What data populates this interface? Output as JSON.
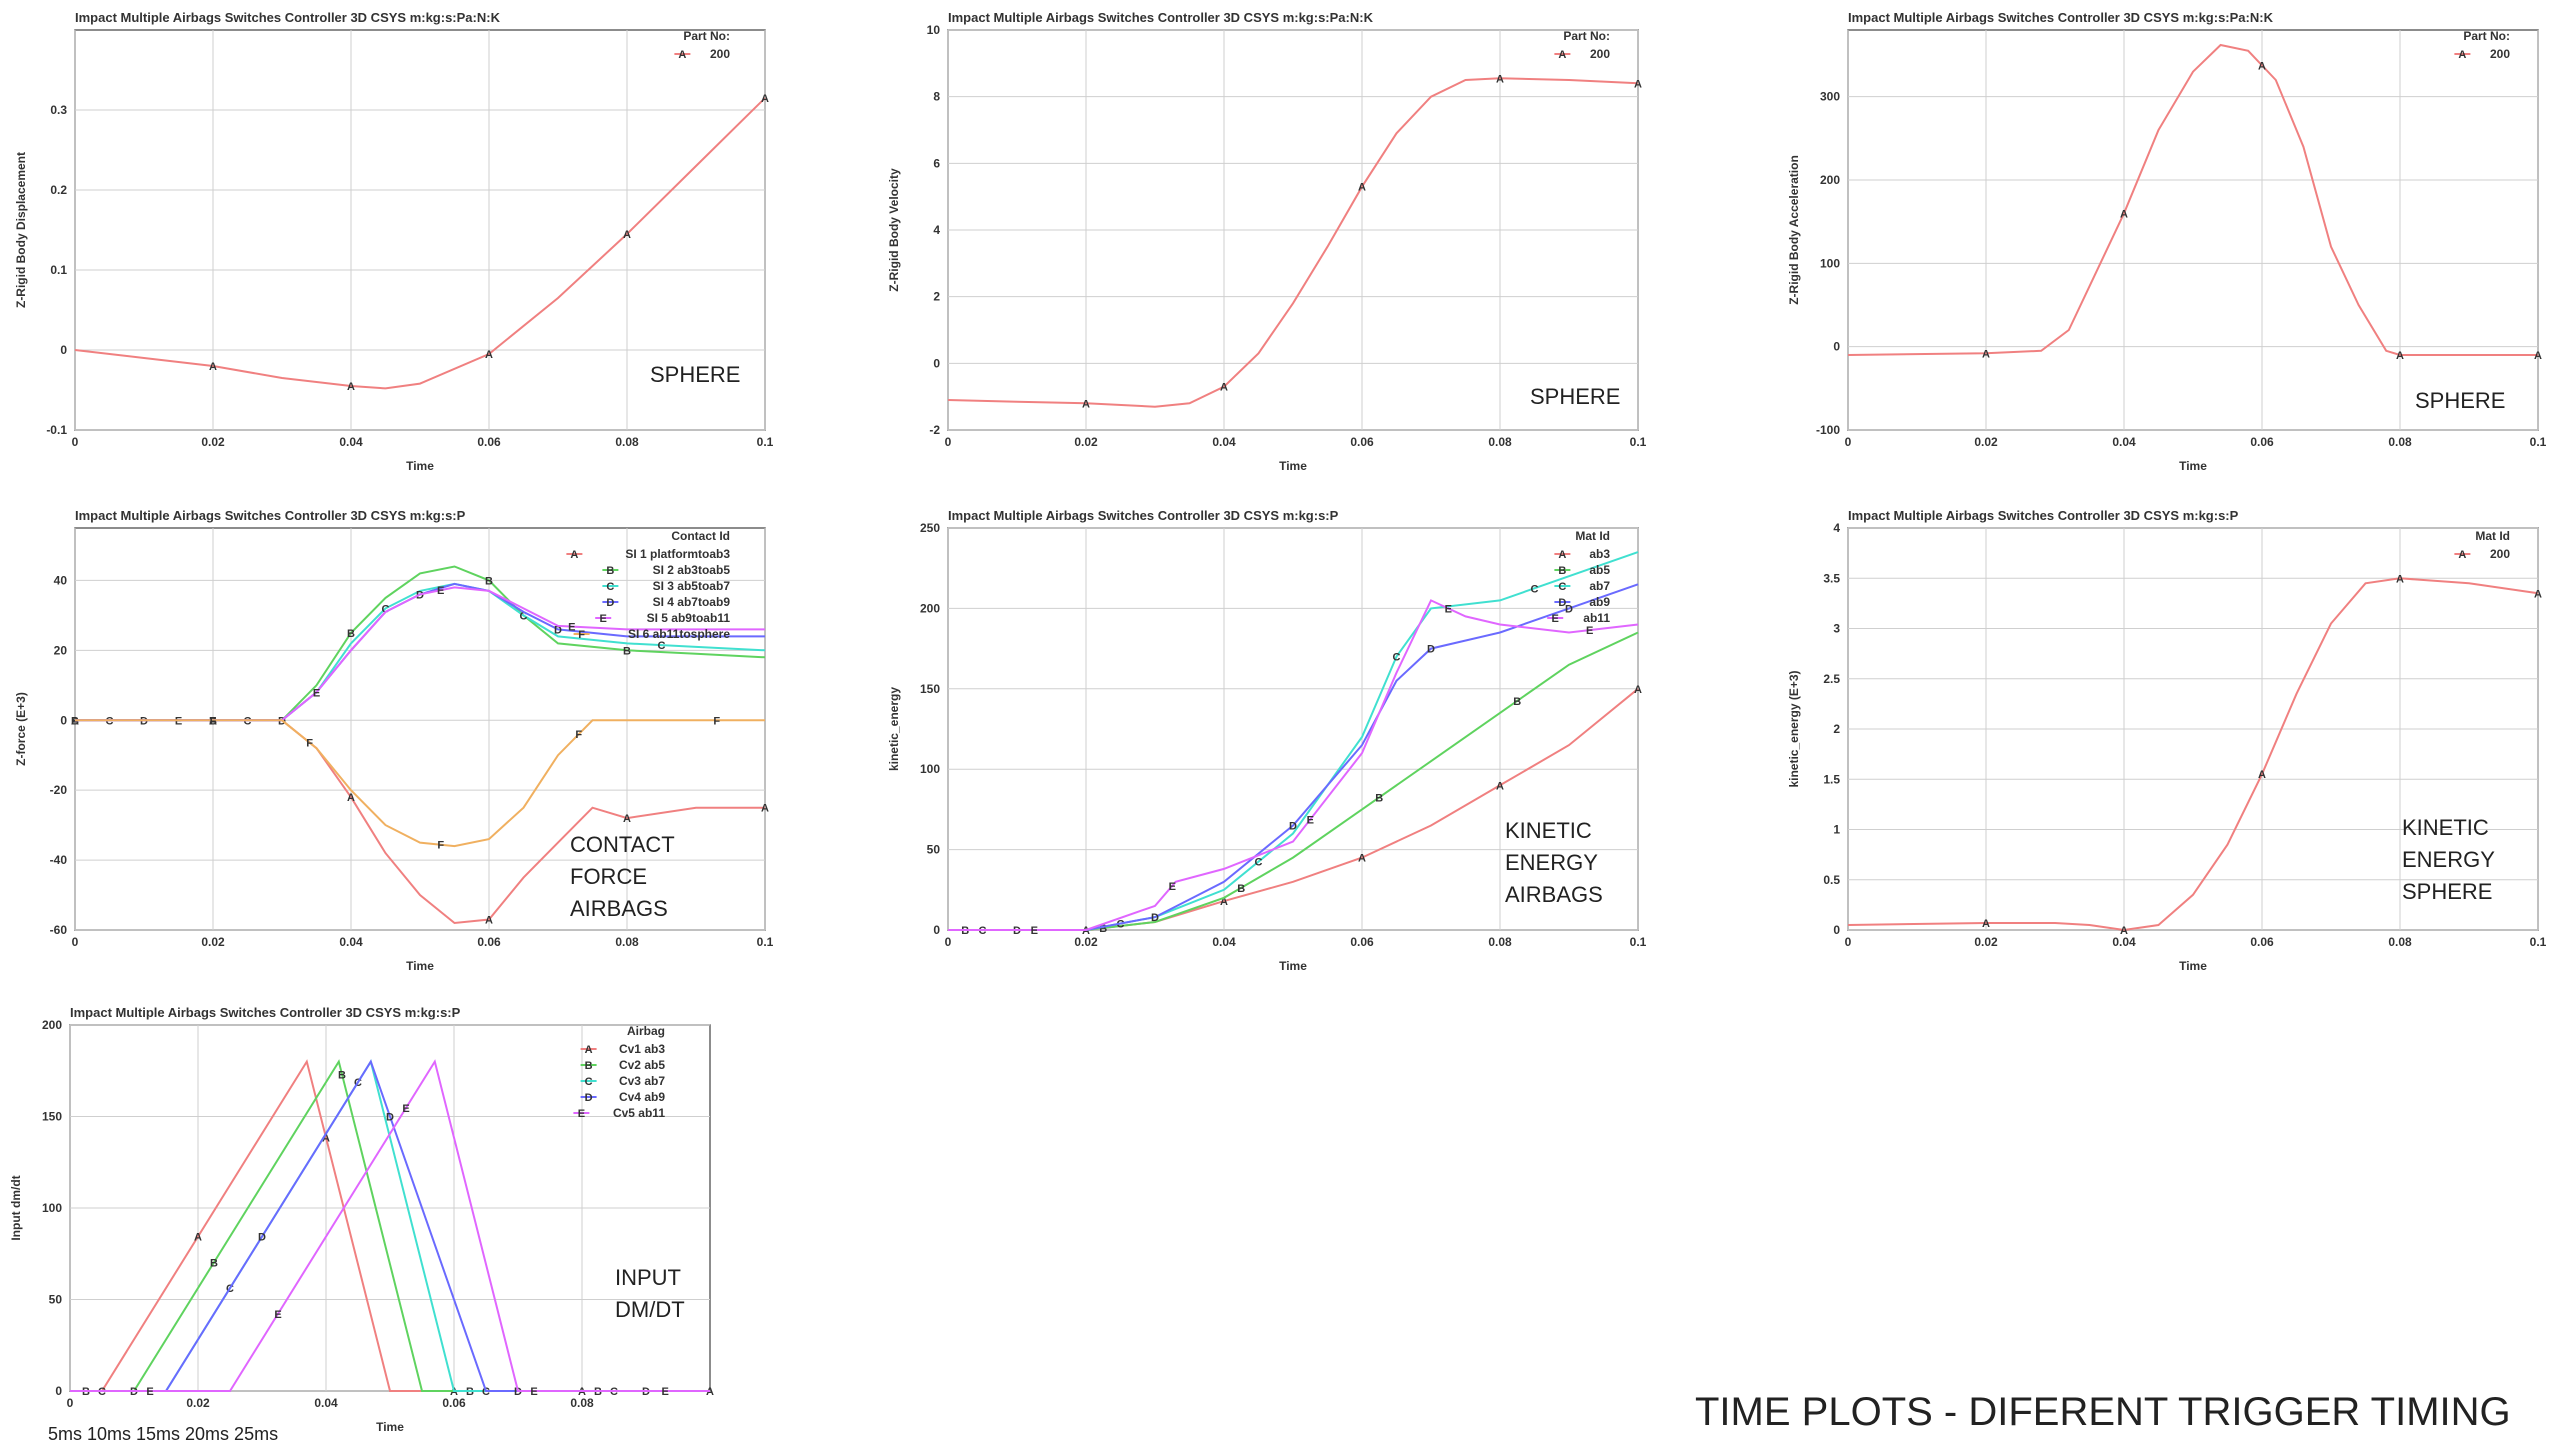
{
  "caption": "TIME PLOTS - DIFERENT TRIGGER TIMING",
  "bottom_note": "5ms 10ms 15ms 20ms 25ms",
  "chart_data": [
    {
      "id": "disp",
      "type": "line",
      "title": "Impact Multiple Airbags Switches Controller 3D CSYS m:kg:s:Pa:N:K",
      "xlabel": "Time",
      "ylabel": "Z-Rigid Body Displacement",
      "xlim": [
        0,
        0.1
      ],
      "ylim": [
        -0.1,
        0.4
      ],
      "xticks": [
        0,
        0.02,
        0.04,
        0.06,
        0.08,
        0.1
      ],
      "yticks": [
        -0.1,
        0,
        0.1,
        0.2,
        0.3
      ],
      "legend_title": "Part No:",
      "annotation": [
        "SPHERE"
      ],
      "series": [
        {
          "name": "200",
          "marker": "A",
          "color": "#f08080",
          "x": [
            0,
            0.01,
            0.02,
            0.03,
            0.04,
            0.045,
            0.05,
            0.06,
            0.07,
            0.08,
            0.09,
            0.1
          ],
          "y": [
            0,
            -0.01,
            -0.02,
            -0.035,
            -0.045,
            -0.048,
            -0.042,
            -0.005,
            0.065,
            0.145,
            0.23,
            0.315
          ],
          "marks_x": [
            0.02,
            0.04,
            0.06,
            0.08,
            0.1
          ]
        }
      ]
    },
    {
      "id": "vel",
      "type": "line",
      "title": "Impact Multiple Airbags Switches Controller 3D CSYS m:kg:s:Pa:N:K",
      "xlabel": "Time",
      "ylabel": "Z-Rigid Body Velocity",
      "xlim": [
        0,
        0.1
      ],
      "ylim": [
        -2,
        10
      ],
      "xticks": [
        0,
        0.02,
        0.04,
        0.06,
        0.08,
        0.1
      ],
      "yticks": [
        -2,
        0,
        2,
        4,
        6,
        8,
        10
      ],
      "legend_title": "Part No:",
      "annotation": [
        "SPHERE"
      ],
      "series": [
        {
          "name": "200",
          "marker": "A",
          "color": "#f08080",
          "x": [
            0,
            0.01,
            0.02,
            0.03,
            0.035,
            0.04,
            0.045,
            0.05,
            0.055,
            0.06,
            0.065,
            0.07,
            0.075,
            0.08,
            0.09,
            0.1
          ],
          "y": [
            -1.1,
            -1.15,
            -1.2,
            -1.3,
            -1.2,
            -0.7,
            0.3,
            1.8,
            3.5,
            5.3,
            6.9,
            8.0,
            8.5,
            8.55,
            8.5,
            8.4
          ],
          "marks_x": [
            0.02,
            0.04,
            0.06,
            0.08,
            0.1
          ]
        }
      ]
    },
    {
      "id": "acc",
      "type": "line",
      "title": "Impact Multiple Airbags Switches Controller 3D CSYS m:kg:s:Pa:N:K",
      "xlabel": "Time",
      "ylabel": "Z-Rigid Body Acceleration",
      "xlim": [
        0,
        0.1
      ],
      "ylim": [
        -100,
        380
      ],
      "xticks": [
        0,
        0.02,
        0.04,
        0.06,
        0.08,
        0.1
      ],
      "yticks": [
        -100,
        0,
        100,
        200,
        300
      ],
      "legend_title": "Part No:",
      "annotation": [
        "SPHERE"
      ],
      "series": [
        {
          "name": "200",
          "marker": "A",
          "color": "#f08080",
          "x": [
            0,
            0.02,
            0.028,
            0.032,
            0.036,
            0.04,
            0.045,
            0.05,
            0.054,
            0.058,
            0.062,
            0.066,
            0.07,
            0.074,
            0.078,
            0.08,
            0.09,
            0.1
          ],
          "y": [
            -10,
            -8,
            -5,
            20,
            90,
            160,
            260,
            330,
            362,
            355,
            320,
            240,
            120,
            50,
            -5,
            -10,
            -10,
            -10
          ],
          "marks_x": [
            0.02,
            0.04,
            0.06,
            0.08,
            0.1
          ]
        }
      ]
    },
    {
      "id": "force",
      "type": "line",
      "title": "Impact Multiple Airbags Switches Controller 3D CSYS m:kg:s:P",
      "xlabel": "Time",
      "ylabel": "Z-force (E+3)",
      "xlim": [
        0,
        0.1
      ],
      "ylim": [
        -60,
        55
      ],
      "xticks": [
        0,
        0.02,
        0.04,
        0.06,
        0.08,
        0.1
      ],
      "yticks": [
        -60,
        -40,
        -20,
        0,
        20,
        40
      ],
      "legend_title": "Contact Id",
      "annotation": [
        "CONTACT",
        "FORCE",
        "AIRBAGS"
      ],
      "series": [
        {
          "name": "SI 1 platformtoab3",
          "marker": "A",
          "color": "#f08080",
          "x": [
            0,
            0.02,
            0.03,
            0.035,
            0.04,
            0.045,
            0.05,
            0.055,
            0.06,
            0.065,
            0.07,
            0.075,
            0.08,
            0.09,
            0.1
          ],
          "y": [
            0,
            0,
            0,
            -8,
            -22,
            -38,
            -50,
            -58,
            -57,
            -45,
            -35,
            -25,
            -28,
            -25,
            -25
          ],
          "marks_x": [
            0,
            0.02,
            0.04,
            0.06,
            0.08,
            0.1
          ]
        },
        {
          "name": "SI 2 ab3toab5",
          "marker": "B",
          "color": "#5fd35f",
          "x": [
            0,
            0.02,
            0.03,
            0.035,
            0.04,
            0.045,
            0.05,
            0.055,
            0.06,
            0.065,
            0.07,
            0.08,
            0.09,
            0.1
          ],
          "y": [
            0,
            0,
            0,
            10,
            25,
            35,
            42,
            44,
            40,
            30,
            22,
            20,
            19,
            18
          ],
          "marks_x": [
            0,
            0.02,
            0.04,
            0.06,
            0.08
          ]
        },
        {
          "name": "SI 3 ab5toab7",
          "marker": "C",
          "color": "#40e0d0",
          "x": [
            0,
            0.02,
            0.03,
            0.035,
            0.04,
            0.045,
            0.05,
            0.055,
            0.06,
            0.065,
            0.07,
            0.08,
            0.09,
            0.1
          ],
          "y": [
            0,
            0,
            0,
            8,
            22,
            32,
            37,
            39,
            37,
            30,
            24,
            22,
            21,
            20
          ],
          "marks_x": [
            0.005,
            0.025,
            0.045,
            0.065,
            0.085
          ]
        },
        {
          "name": "SI 4 ab7toab9",
          "marker": "D",
          "color": "#6a6aff",
          "x": [
            0,
            0.02,
            0.03,
            0.035,
            0.04,
            0.045,
            0.05,
            0.055,
            0.06,
            0.065,
            0.07,
            0.08,
            0.09,
            0.1
          ],
          "y": [
            0,
            0,
            0,
            8,
            20,
            31,
            36,
            39,
            37,
            31,
            26,
            24,
            24,
            24
          ],
          "marks_x": [
            0.01,
            0.03,
            0.05,
            0.07
          ]
        },
        {
          "name": "SI 5 ab9toab11",
          "marker": "E",
          "color": "#e066ff",
          "x": [
            0,
            0.02,
            0.03,
            0.035,
            0.04,
            0.045,
            0.05,
            0.055,
            0.06,
            0.065,
            0.07,
            0.08,
            0.09,
            0.1
          ],
          "y": [
            0,
            0,
            0,
            8,
            20,
            31,
            36,
            38,
            37,
            32,
            27,
            26,
            26,
            26
          ],
          "marks_x": [
            0.015,
            0.035,
            0.053,
            0.072
          ]
        },
        {
          "name": "SI 6 ab11tosphere",
          "marker": "F",
          "color": "#f0b060",
          "x": [
            0,
            0.02,
            0.03,
            0.035,
            0.04,
            0.045,
            0.05,
            0.055,
            0.06,
            0.065,
            0.07,
            0.075,
            0.08,
            0.09,
            0.1
          ],
          "y": [
            0,
            0,
            0,
            -8,
            -20,
            -30,
            -35,
            -36,
            -34,
            -25,
            -10,
            0,
            0,
            0,
            0
          ],
          "marks_x": [
            0.02,
            0.034,
            0.053,
            0.073,
            0.093
          ]
        }
      ]
    },
    {
      "id": "ke_airbags",
      "type": "line",
      "title": "Impact Multiple Airbags Switches Controller 3D CSYS m:kg:s:P",
      "xlabel": "Time",
      "ylabel": "kinetic_energy",
      "xlim": [
        0,
        0.1
      ],
      "ylim": [
        0,
        250
      ],
      "xticks": [
        0,
        0.02,
        0.04,
        0.06,
        0.08,
        0.1
      ],
      "yticks": [
        0,
        50,
        100,
        150,
        200,
        250
      ],
      "legend_title": "Mat Id",
      "annotation": [
        "KINETIC",
        "ENERGY",
        "AIRBAGS"
      ],
      "series": [
        {
          "name": "ab3",
          "marker": "A",
          "color": "#f08080",
          "x": [
            0,
            0.02,
            0.03,
            0.04,
            0.05,
            0.06,
            0.07,
            0.08,
            0.09,
            0.1
          ],
          "y": [
            0,
            0,
            5,
            18,
            30,
            45,
            65,
            90,
            115,
            150
          ],
          "marks_x": [
            0.02,
            0.04,
            0.06,
            0.08,
            0.1
          ]
        },
        {
          "name": "ab5",
          "marker": "B",
          "color": "#5fd35f",
          "x": [
            0,
            0.02,
            0.03,
            0.04,
            0.05,
            0.06,
            0.07,
            0.08,
            0.09,
            0.1
          ],
          "y": [
            0,
            0,
            5,
            20,
            45,
            75,
            105,
            135,
            165,
            185
          ],
          "marks_x": [
            0.0025,
            0.0225,
            0.0425,
            0.0625,
            0.0825
          ]
        },
        {
          "name": "ab7",
          "marker": "C",
          "color": "#40e0d0",
          "x": [
            0,
            0.02,
            0.03,
            0.04,
            0.05,
            0.06,
            0.065,
            0.07,
            0.08,
            0.09,
            0.1
          ],
          "y": [
            0,
            0,
            8,
            25,
            60,
            120,
            170,
            200,
            205,
            220,
            235
          ],
          "marks_x": [
            0.005,
            0.025,
            0.045,
            0.065,
            0.085
          ]
        },
        {
          "name": "ab9",
          "marker": "D",
          "color": "#6a6aff",
          "x": [
            0,
            0.02,
            0.03,
            0.04,
            0.05,
            0.06,
            0.065,
            0.07,
            0.08,
            0.09,
            0.1
          ],
          "y": [
            0,
            0,
            8,
            30,
            65,
            115,
            155,
            175,
            185,
            200,
            215
          ],
          "marks_x": [
            0.01,
            0.03,
            0.05,
            0.07,
            0.09
          ]
        },
        {
          "name": "ab11",
          "marker": "E",
          "color": "#e066ff",
          "x": [
            0,
            0.02,
            0.03,
            0.033,
            0.04,
            0.05,
            0.06,
            0.065,
            0.07,
            0.075,
            0.08,
            0.09,
            0.1
          ],
          "y": [
            0,
            0,
            15,
            30,
            38,
            55,
            110,
            160,
            205,
            195,
            190,
            185,
            190
          ],
          "marks_x": [
            0.0125,
            0.0325,
            0.0525,
            0.0725,
            0.093
          ]
        }
      ]
    },
    {
      "id": "ke_sphere",
      "type": "line",
      "title": "Impact Multiple Airbags Switches Controller 3D CSYS m:kg:s:P",
      "xlabel": "Time",
      "ylabel": "kinetic_energy (E+3)",
      "xlim": [
        0,
        0.1
      ],
      "ylim": [
        0,
        4
      ],
      "xticks": [
        0,
        0.02,
        0.04,
        0.06,
        0.08,
        0.1
      ],
      "yticks": [
        0,
        0.5,
        1,
        1.5,
        2,
        2.5,
        3,
        3.5,
        4
      ],
      "legend_title": "Mat Id",
      "annotation": [
        "KINETIC",
        "ENERGY",
        "SPHERE"
      ],
      "series": [
        {
          "name": "200",
          "marker": "A",
          "color": "#f08080",
          "x": [
            0,
            0.02,
            0.03,
            0.035,
            0.04,
            0.045,
            0.05,
            0.055,
            0.06,
            0.065,
            0.07,
            0.075,
            0.08,
            0.09,
            0.1
          ],
          "y": [
            0.05,
            0.07,
            0.07,
            0.05,
            0.0,
            0.05,
            0.35,
            0.85,
            1.55,
            2.35,
            3.05,
            3.45,
            3.5,
            3.45,
            3.35
          ],
          "marks_x": [
            0.02,
            0.04,
            0.06,
            0.08,
            0.1
          ]
        }
      ]
    },
    {
      "id": "dmdt",
      "type": "line",
      "title": "Impact Multiple Airbags Switches Controller 3D CSYS m:kg:s:P",
      "xlabel": "Time",
      "ylabel": "Input dm/dt",
      "xlim": [
        0,
        0.1
      ],
      "ylim": [
        0,
        200
      ],
      "xticks": [
        0,
        0.02,
        0.04,
        0.06,
        0.08
      ],
      "yticks": [
        0,
        50,
        100,
        150,
        200
      ],
      "legend_title": "Airbag",
      "annotation": [
        "INPUT",
        "DM/DT"
      ],
      "series": [
        {
          "name": "Cv1 ab3",
          "marker": "A",
          "color": "#f08080",
          "x": [
            0,
            0.005,
            0.037,
            0.05,
            0.1
          ],
          "y": [
            0,
            0,
            180,
            0,
            0
          ],
          "marks_x": [
            0.02,
            0.04,
            0.06,
            0.08,
            0.1
          ]
        },
        {
          "name": "Cv2 ab5",
          "marker": "B",
          "color": "#5fd35f",
          "x": [
            0,
            0.01,
            0.042,
            0.055,
            0.1
          ],
          "y": [
            0,
            0,
            180,
            0,
            0
          ],
          "marks_x": [
            0.0025,
            0.0225,
            0.0425,
            0.0625,
            0.0825
          ]
        },
        {
          "name": "Cv3 ab7",
          "marker": "C",
          "color": "#40e0d0",
          "x": [
            0,
            0.015,
            0.047,
            0.06,
            0.1
          ],
          "y": [
            0,
            0,
            180,
            0,
            0
          ],
          "marks_x": [
            0.005,
            0.025,
            0.045,
            0.065,
            0.085
          ]
        },
        {
          "name": "Cv4 ab9",
          "marker": "D",
          "color": "#6a6aff",
          "x": [
            0,
            0.015,
            0.047,
            0.065,
            0.1
          ],
          "y": [
            0,
            0,
            180,
            0,
            0
          ],
          "marks_x": [
            0.01,
            0.03,
            0.05,
            0.07,
            0.09
          ]
        },
        {
          "name": "Cv5 ab11",
          "marker": "E",
          "color": "#e066ff",
          "x": [
            0,
            0.025,
            0.057,
            0.07,
            0.1
          ],
          "y": [
            0,
            0,
            180,
            0,
            0
          ],
          "marks_x": [
            0.0125,
            0.0325,
            0.0525,
            0.0725,
            0.093
          ]
        }
      ]
    }
  ]
}
